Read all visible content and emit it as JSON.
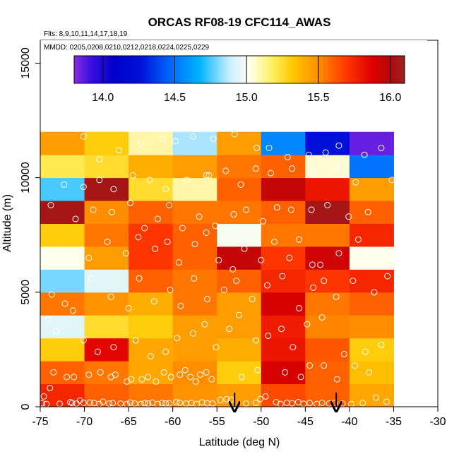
{
  "chart_data": {
    "type": "heatmap",
    "title": "ORCAS RF08-19 CFC114_AWAS",
    "flights_note": "Flts: 8,9,10,11,14,17,18,19",
    "dates_note": "MMDD: 0205,0208,0210,0212,0218,0224,0225,0229",
    "xlabel": "Latitude (deg N)",
    "ylabel": "Altitude (m)",
    "xlim": [
      -75,
      -30
    ],
    "ylim": [
      0,
      16000
    ],
    "x_ticks": [
      -75,
      -70,
      -65,
      -60,
      -55,
      -50,
      -45,
      -40,
      -35,
      -30
    ],
    "y_ticks": [
      0,
      5000,
      10000,
      15000
    ],
    "colorbar": {
      "min": 13.8,
      "max": 16.1,
      "ticks": [
        14.0,
        14.5,
        15.0,
        15.5,
        16.0
      ],
      "tick_labels": [
        "14.0",
        "14.5",
        "15.0",
        "15.5",
        "16.0"
      ]
    },
    "x_bins": [
      -75,
      -70,
      -65,
      -60,
      -55,
      -50,
      -45,
      -40,
      -35
    ],
    "y_bins": [
      0,
      1000,
      2000,
      3000,
      4000,
      5000,
      6000,
      7000,
      8000,
      9000,
      10000,
      11000,
      12000
    ],
    "cell_values": [
      [
        15.75,
        15.6,
        15.55,
        15.48,
        15.45,
        15.65,
        15.6,
        15.42
      ],
      [
        15.6,
        15.55,
        15.42,
        15.5,
        15.3,
        15.9,
        15.6,
        15.35
      ],
      [
        15.3,
        15.85,
        15.42,
        15.45,
        15.4,
        15.8,
        15.62,
        15.3
      ],
      [
        14.95,
        15.25,
        15.3,
        15.45,
        15.45,
        15.78,
        15.52,
        15.5
      ],
      [
        15.55,
        15.48,
        15.4,
        15.55,
        15.45,
        15.9,
        15.55,
        15.6
      ],
      [
        14.8,
        14.95,
        15.6,
        15.55,
        15.6,
        15.75,
        15.7,
        15.75
      ],
      [
        15.02,
        15.45,
        15.7,
        15.6,
        15.95,
        15.7,
        15.92,
        15.02
      ],
      [
        15.3,
        15.55,
        15.7,
        15.6,
        15.0,
        15.55,
        15.55,
        15.75
      ],
      [
        16.05,
        15.5,
        15.6,
        15.55,
        15.55,
        15.6,
        16.05,
        15.6
      ],
      [
        14.75,
        16.05,
        15.25,
        15.1,
        15.6,
        15.95,
        15.8,
        15.45
      ],
      [
        15.2,
        15.25,
        15.4,
        15.45,
        15.55,
        15.6,
        15.05,
        14.5
      ],
      [
        15.45,
        15.3,
        15.1,
        14.85,
        15.45,
        14.55,
        14.25,
        13.85
      ]
    ],
    "arrow_markers_lat": [
      -53,
      -41.5
    ],
    "samples": [
      [
        -74.8,
        150
      ],
      [
        -74.6,
        450
      ],
      [
        -74.3,
        120
      ],
      [
        -73.9,
        820
      ],
      [
        -72.8,
        130
      ],
      [
        -71.6,
        200
      ],
      [
        -71.4,
        160
      ],
      [
        -70.9,
        140
      ],
      [
        -70.5,
        270
      ],
      [
        -70.1,
        170
      ],
      [
        -69.4,
        180
      ],
      [
        -68.9,
        160
      ],
      [
        -68.3,
        120
      ],
      [
        -67.9,
        220
      ],
      [
        -67.2,
        140
      ],
      [
        -66.8,
        160
      ],
      [
        -65.9,
        140
      ],
      [
        -65.2,
        120
      ],
      [
        -64.8,
        180
      ],
      [
        -64.3,
        140
      ],
      [
        -63.6,
        120
      ],
      [
        -63.2,
        160
      ],
      [
        -62.8,
        140
      ],
      [
        -62.3,
        180
      ],
      [
        -61.7,
        120
      ],
      [
        -61.2,
        160
      ],
      [
        -60.8,
        140
      ],
      [
        -60.4,
        150
      ],
      [
        -59.6,
        200
      ],
      [
        -59.2,
        170
      ],
      [
        -58.5,
        140
      ],
      [
        -57.9,
        160
      ],
      [
        -57.3,
        120
      ],
      [
        -56.7,
        190
      ],
      [
        -56.1,
        150
      ],
      [
        -55.5,
        140
      ],
      [
        -54.6,
        300
      ],
      [
        -53.9,
        330
      ],
      [
        -53.4,
        310
      ],
      [
        -51.7,
        140
      ],
      [
        -50.6,
        170
      ],
      [
        -50.1,
        340
      ],
      [
        -49.5,
        450
      ],
      [
        -48.3,
        200
      ],
      [
        -47.8,
        120
      ],
      [
        -47.1,
        170
      ],
      [
        -46.5,
        150
      ],
      [
        -45.8,
        200
      ],
      [
        -45.2,
        130
      ],
      [
        -44.5,
        160
      ],
      [
        -43.7,
        120
      ],
      [
        -43.1,
        170
      ],
      [
        -42.3,
        140
      ],
      [
        -41.7,
        160
      ],
      [
        -40.8,
        140
      ],
      [
        -39.8,
        120
      ],
      [
        -38.5,
        160
      ],
      [
        -37.0,
        400
      ],
      [
        -35.8,
        220
      ],
      [
        -73.5,
        1500
      ],
      [
        -72.0,
        1300
      ],
      [
        -71.2,
        1300
      ],
      [
        -69.5,
        1400
      ],
      [
        -68.2,
        1500
      ],
      [
        -67.0,
        1300
      ],
      [
        -66.5,
        1400
      ],
      [
        -65.2,
        1100
      ],
      [
        -64.7,
        1200
      ],
      [
        -63.5,
        1200
      ],
      [
        -62.8,
        1300
      ],
      [
        -61.9,
        1100
      ],
      [
        -61.0,
        1500
      ],
      [
        -60.2,
        1300
      ],
      [
        -59.2,
        1400
      ],
      [
        -58.6,
        1600
      ],
      [
        -58.0,
        1300
      ],
      [
        -57.4,
        1100
      ],
      [
        -56.9,
        1400
      ],
      [
        -56.2,
        1500
      ],
      [
        -55.6,
        1200
      ],
      [
        -52.2,
        1300
      ],
      [
        -50.4,
        1600
      ],
      [
        -47.3,
        1500
      ],
      [
        -45.5,
        1300
      ],
      [
        -44.5,
        1800
      ],
      [
        -42.9,
        1800
      ],
      [
        -41.4,
        1200
      ],
      [
        -39.4,
        1800
      ],
      [
        -37.8,
        1500
      ],
      [
        -74.1,
        3800
      ],
      [
        -73.2,
        3300
      ],
      [
        -70.1,
        2900
      ],
      [
        -68.5,
        2400
      ],
      [
        -66.7,
        2600
      ],
      [
        -64.2,
        2900
      ],
      [
        -62.5,
        2200
      ],
      [
        -60.8,
        2400
      ],
      [
        -59.5,
        3000
      ],
      [
        -57.7,
        3200
      ],
      [
        -56.4,
        3600
      ],
      [
        -55.1,
        2600
      ],
      [
        -53.6,
        3400
      ],
      [
        -52.5,
        4000
      ],
      [
        -50.6,
        2900
      ],
      [
        -49.2,
        3100
      ],
      [
        -47.7,
        3400
      ],
      [
        -46.4,
        2600
      ],
      [
        -44.8,
        3600
      ],
      [
        -43.1,
        3900
      ],
      [
        -40.6,
        2300
      ],
      [
        -38.2,
        2400
      ],
      [
        -36.4,
        2700
      ],
      [
        -73.7,
        4900
      ],
      [
        -72.2,
        4500
      ],
      [
        -71.3,
        4200
      ],
      [
        -69.2,
        5600
      ],
      [
        -67.0,
        4800
      ],
      [
        -65.0,
        4300
      ],
      [
        -63.8,
        5600
      ],
      [
        -62.1,
        4600
      ],
      [
        -60.3,
        5100
      ],
      [
        -59.1,
        4400
      ],
      [
        -57.6,
        5600
      ],
      [
        -56.1,
        4700
      ],
      [
        -54.2,
        5100
      ],
      [
        -52.8,
        5500
      ],
      [
        -51.0,
        4700
      ],
      [
        -49.3,
        5300
      ],
      [
        -47.6,
        5700
      ],
      [
        -45.7,
        4300
      ],
      [
        -44.1,
        5200
      ],
      [
        -42.9,
        5500
      ],
      [
        -41.5,
        4800
      ],
      [
        -39.6,
        5500
      ],
      [
        -37.2,
        5000
      ],
      [
        -35.7,
        5700
      ],
      [
        -72.0,
        6800
      ],
      [
        -69.5,
        6500
      ],
      [
        -67.4,
        7200
      ],
      [
        -65.3,
        6700
      ],
      [
        -63.9,
        7400
      ],
      [
        -62.0,
        6900
      ],
      [
        -60.6,
        7200
      ],
      [
        -59.3,
        6300
      ],
      [
        -57.5,
        7100
      ],
      [
        -56.2,
        7600
      ],
      [
        -54.8,
        6400
      ],
      [
        -53.2,
        6000
      ],
      [
        -51.9,
        6900
      ],
      [
        -50.0,
        6400
      ],
      [
        -48.5,
        7200
      ],
      [
        -46.8,
        6500
      ],
      [
        -45.7,
        7300
      ],
      [
        -44.2,
        6200
      ],
      [
        -43.3,
        6200
      ],
      [
        -41.2,
        6700
      ],
      [
        -39.0,
        7300
      ],
      [
        -37.8,
        6600
      ],
      [
        -73.8,
        8800
      ],
      [
        -71.0,
        8200
      ],
      [
        -69.0,
        8600
      ],
      [
        -66.9,
        8500
      ],
      [
        -64.8,
        8900
      ],
      [
        -63.2,
        7800
      ],
      [
        -61.7,
        8200
      ],
      [
        -60.4,
        8800
      ],
      [
        -58.9,
        7800
      ],
      [
        -57.0,
        8300
      ],
      [
        -55.2,
        7900
      ],
      [
        -53.1,
        8400
      ],
      [
        -51.7,
        8600
      ],
      [
        -49.8,
        8100
      ],
      [
        -48.2,
        8700
      ],
      [
        -46.6,
        8600
      ],
      [
        -44.3,
        8600
      ],
      [
        -42.5,
        8800
      ],
      [
        -40.1,
        8300
      ],
      [
        -37.9,
        8500
      ],
      [
        -72.3,
        9700
      ],
      [
        -70.1,
        9600
      ],
      [
        -68.3,
        9900
      ],
      [
        -66.7,
        9500
      ],
      [
        -64.5,
        10100
      ],
      [
        -62.6,
        9900
      ],
      [
        -60.8,
        9500
      ],
      [
        -58.4,
        9900
      ],
      [
        -56.2,
        10100
      ],
      [
        -55.9,
        10100
      ],
      [
        -54.0,
        10300
      ],
      [
        -52.3,
        9700
      ],
      [
        -50.6,
        10400
      ],
      [
        -48.9,
        10200
      ],
      [
        -46.5,
        10400
      ],
      [
        -44.0,
        10200
      ],
      [
        -41.4,
        10400
      ],
      [
        -39.3,
        9800
      ],
      [
        -35.2,
        9900
      ],
      [
        -70.1,
        11800
      ],
      [
        -68.3,
        10800
      ],
      [
        -66.1,
        11200
      ],
      [
        -63.6,
        11500
      ],
      [
        -61.2,
        11700
      ],
      [
        -59.7,
        11600
      ],
      [
        -57.7,
        11800
      ],
      [
        -55.4,
        11700
      ],
      [
        -53.0,
        11900
      ],
      [
        -50.5,
        11300
      ],
      [
        -49.1,
        11300
      ],
      [
        -47.0,
        10900
      ],
      [
        -44.6,
        11000
      ],
      [
        -42.7,
        11100
      ],
      [
        -41.2,
        11400
      ],
      [
        -38.3,
        11000
      ],
      [
        -36.4,
        11300
      ]
    ]
  }
}
